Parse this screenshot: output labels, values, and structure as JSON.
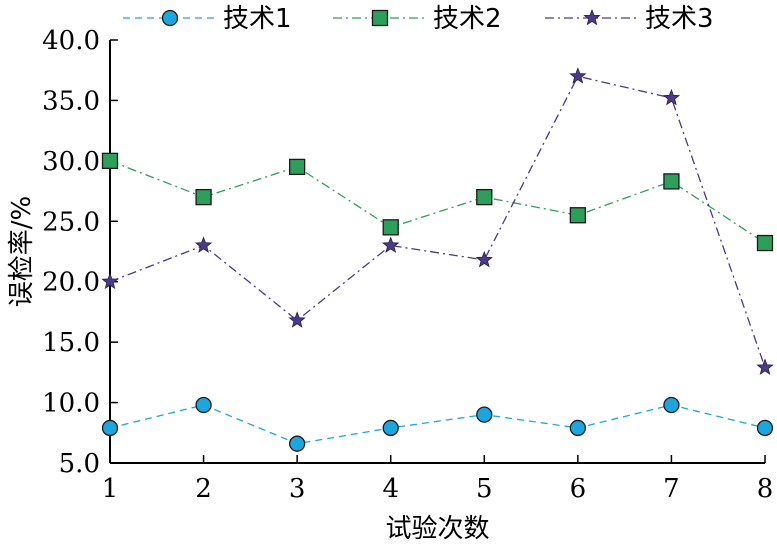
{
  "chart_data": {
    "type": "line",
    "xlabel": "试验次数",
    "ylabel": "误检率/%",
    "x": [
      1,
      2,
      3,
      4,
      5,
      6,
      7,
      8
    ],
    "xticks": [
      "1",
      "2",
      "3",
      "4",
      "5",
      "6",
      "7",
      "8"
    ],
    "ylim": [
      5.0,
      40.0
    ],
    "yticks": [
      "5.0",
      "10.0",
      "15.0",
      "20.0",
      "25.0",
      "30.0",
      "35.0",
      "40.0"
    ],
    "grid": false,
    "legend_position": "top",
    "series": [
      {
        "name": "技术1",
        "marker": "circle",
        "line_style": "dashed",
        "color": "#1aa7e0",
        "values": [
          7.9,
          9.8,
          6.6,
          7.9,
          9.0,
          7.9,
          9.8,
          7.9
        ]
      },
      {
        "name": "技术2",
        "marker": "square",
        "line_style": "dashdot",
        "color": "#2ca05a",
        "values": [
          30.0,
          27.0,
          29.5,
          24.5,
          27.0,
          25.5,
          28.3,
          23.2
        ]
      },
      {
        "name": "技术3",
        "marker": "star",
        "line_style": "dashdot",
        "color": "#4b3a8a",
        "values": [
          20.0,
          23.0,
          16.8,
          23.0,
          21.8,
          37.0,
          35.2,
          12.9
        ]
      }
    ]
  }
}
